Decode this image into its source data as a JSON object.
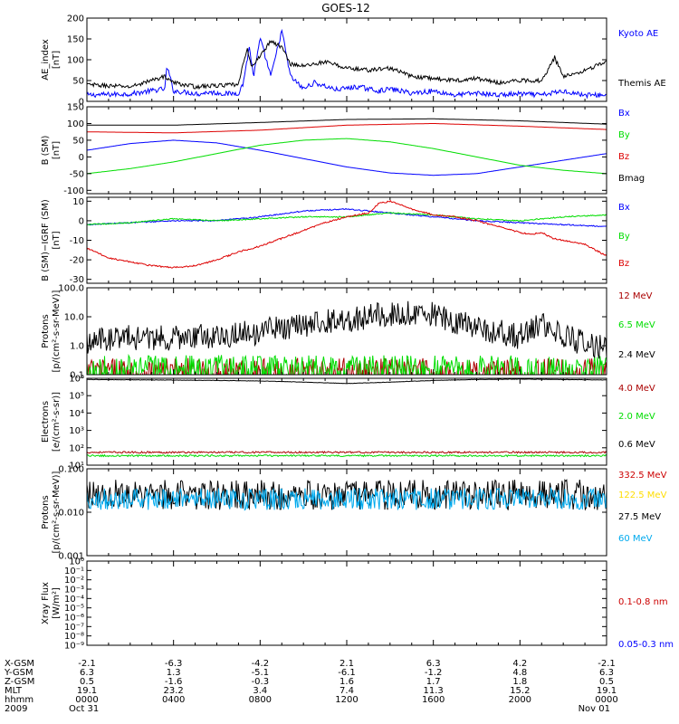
{
  "title": "GOES-12",
  "chart_data": [
    {
      "type": "line",
      "panel": "ae-index",
      "ylabel": [
        "AE_index",
        "[nT]"
      ],
      "yscale": "linear",
      "ylim": [
        0,
        200
      ],
      "yticks": [
        "0",
        "50",
        "100",
        "150",
        "200"
      ],
      "grid": false,
      "legend_position": "right",
      "series": [
        {
          "name": "Kyoto AE",
          "color": "#0000ff",
          "noise": 6,
          "x": [
            0,
            2,
            3.6,
            3.7,
            4.0,
            5.2,
            5.6,
            6.5,
            7.0,
            7.2,
            7.5,
            7.7,
            8.0,
            8.5,
            9.0,
            9.4,
            10.0,
            10.5,
            11.5,
            12.5,
            13.5,
            14,
            15,
            16,
            17,
            18,
            19,
            20,
            21,
            22,
            23,
            24
          ],
          "y": [
            15,
            18,
            30,
            85,
            25,
            18,
            22,
            18,
            20,
            40,
            130,
            60,
            150,
            60,
            170,
            60,
            30,
            45,
            28,
            35,
            25,
            30,
            20,
            25,
            15,
            20,
            15,
            18,
            15,
            25,
            15,
            15
          ]
        },
        {
          "name": "Themis AE",
          "color": "#000000",
          "noise": 5,
          "x": [
            0,
            2,
            3.6,
            4,
            5,
            6,
            7,
            7.4,
            7.6,
            8,
            8.5,
            9,
            9.4,
            10,
            11,
            12,
            13,
            14,
            15,
            16,
            17,
            18,
            19,
            20,
            21,
            21.6,
            22,
            23,
            24
          ],
          "y": [
            40,
            35,
            60,
            45,
            35,
            38,
            40,
            130,
            80,
            110,
            145,
            130,
            90,
            85,
            95,
            80,
            75,
            80,
            60,
            55,
            50,
            55,
            45,
            50,
            50,
            105,
            60,
            75,
            95
          ]
        }
      ]
    },
    {
      "type": "line",
      "panel": "b-sm",
      "ylabel": [
        "B (SM)",
        "[nT]"
      ],
      "yscale": "linear",
      "ylim": [
        -110,
        150
      ],
      "yticks": [
        "-100",
        "-50",
        "0",
        "50",
        "100",
        "150"
      ],
      "grid": false,
      "legend_position": "right",
      "series": [
        {
          "name": "Bx",
          "color": "#0000ff",
          "noise": 0,
          "x": [
            0,
            2,
            4,
            6,
            8,
            10,
            12,
            14,
            16,
            18,
            20,
            22,
            24
          ],
          "y": [
            20,
            40,
            50,
            42,
            20,
            -5,
            -30,
            -48,
            -55,
            -50,
            -30,
            -10,
            10
          ]
        },
        {
          "name": "By",
          "color": "#00dd00",
          "noise": 0,
          "x": [
            0,
            2,
            4,
            6,
            8,
            10,
            12,
            14,
            16,
            18,
            20,
            22,
            24
          ],
          "y": [
            -50,
            -35,
            -15,
            10,
            35,
            50,
            55,
            45,
            25,
            0,
            -25,
            -40,
            -50
          ]
        },
        {
          "name": "Bz",
          "color": "#dd0000",
          "noise": 0,
          "x": [
            0,
            4,
            8,
            12,
            16,
            20,
            24
          ],
          "y": [
            75,
            72,
            80,
            95,
            100,
            92,
            82
          ]
        },
        {
          "name": "Bmag",
          "color": "#000000",
          "noise": 0,
          "x": [
            0,
            4,
            8,
            12,
            16,
            20,
            24
          ],
          "y": [
            95,
            95,
            103,
            112,
            114,
            108,
            98
          ]
        }
      ]
    },
    {
      "type": "line",
      "panel": "b-minus-igrf",
      "ylabel": [
        "B (SM)−IGRF (SM)",
        "[nT]"
      ],
      "yscale": "linear",
      "ylim": [
        -32,
        12
      ],
      "yticks": [
        "-30",
        "-20",
        "-10",
        "0",
        "10"
      ],
      "grid": false,
      "legend_position": "right",
      "series": [
        {
          "name": "Bx",
          "color": "#0000ff",
          "noise": 0.3,
          "x": [
            0,
            2,
            4,
            6,
            8,
            10,
            12,
            13,
            14,
            16,
            18,
            20,
            22,
            24
          ],
          "y": [
            -2,
            -1,
            0,
            0,
            2,
            5,
            6,
            5,
            4,
            2,
            0,
            -1,
            -2,
            -3
          ]
        },
        {
          "name": "By",
          "color": "#00dd00",
          "noise": 0.3,
          "x": [
            0,
            2,
            4,
            6,
            8,
            10,
            12,
            14,
            16,
            18,
            20,
            22,
            24
          ],
          "y": [
            -2,
            -1,
            1,
            0,
            1,
            2,
            2,
            4,
            3,
            1,
            0,
            2,
            3
          ]
        },
        {
          "name": "Bz",
          "color": "#dd0000",
          "noise": 0.4,
          "x": [
            0,
            1,
            2,
            3,
            4,
            5,
            6,
            7,
            8,
            9,
            10,
            11,
            12,
            13,
            13.5,
            14,
            14.5,
            15,
            16,
            17,
            18,
            19,
            20,
            20.5,
            21,
            21.5,
            22,
            23,
            24
          ],
          "y": [
            -14,
            -19,
            -21,
            -23,
            -24,
            -23,
            -20,
            -16,
            -13,
            -9,
            -5,
            -1,
            2,
            4,
            9,
            10,
            8,
            6,
            3,
            2,
            0,
            -3,
            -6,
            -7,
            -6,
            -9,
            -10,
            -12,
            -18
          ]
        }
      ]
    },
    {
      "type": "line",
      "panel": "protons-low",
      "ylabel": [
        "Protons",
        "[p/(cm²-s-sr-MeV)]"
      ],
      "yscale": "log",
      "ylim": [
        0.1,
        100.0
      ],
      "yticks": [
        "0.1",
        "1.0",
        "10.0",
        "100.0"
      ],
      "grid": false,
      "legend_position": "right",
      "series": [
        {
          "name": "12 MeV",
          "color": "#aa0000",
          "noise": 0.5,
          "x": [
            0,
            24
          ],
          "y": [
            0.12,
            0.12
          ]
        },
        {
          "name": "6.5 MeV",
          "color": "#00dd00",
          "noise": 0.5,
          "x": [
            0,
            24
          ],
          "y": [
            0.15,
            0.15
          ]
        },
        {
          "name": "2.4 MeV",
          "color": "#000000",
          "noise": 0.45,
          "x": [
            0,
            2,
            4,
            6,
            8,
            10,
            12,
            13,
            14,
            15,
            16,
            17,
            18,
            19,
            20,
            21,
            22,
            23,
            24
          ],
          "y": [
            1.5,
            2,
            1.8,
            2.2,
            3,
            5,
            8,
            10,
            12,
            15,
            12,
            7,
            4,
            3,
            2,
            5,
            2,
            1.2,
            0.7
          ]
        }
      ]
    },
    {
      "type": "line",
      "panel": "electrons",
      "ylabel": [
        "Electrons",
        "[e/(cm²-s-sr)]"
      ],
      "yscale": "log",
      "ylim": [
        10,
        1000000
      ],
      "yticks": [
        "10¹",
        "10²",
        "10³",
        "10⁴",
        "10⁵",
        "10⁶"
      ],
      "grid": false,
      "legend_position": "right",
      "series": [
        {
          "name": "4.0 MeV",
          "color": "#aa0000",
          "noise": 0.05,
          "x": [
            0,
            24
          ],
          "y": [
            55,
            55
          ]
        },
        {
          "name": "2.0 MeV",
          "color": "#00dd00",
          "noise": 0.05,
          "x": [
            0,
            24
          ],
          "y": [
            35,
            35
          ]
        },
        {
          "name": "0.6 MeV",
          "color": "#000000",
          "noise": 0.01,
          "x": [
            0,
            3,
            6,
            8,
            10,
            12,
            14,
            16,
            18,
            20,
            22,
            24
          ],
          "y": [
            850000,
            800000,
            750000,
            700000,
            600000,
            500000,
            600000,
            750000,
            850000,
            900000,
            850000,
            800000
          ]
        }
      ]
    },
    {
      "type": "line",
      "panel": "protons-high",
      "ylabel": [
        "Protons",
        "[p/(cm²-s-sr-MeV)]"
      ],
      "yscale": "log",
      "ylim": [
        0.001,
        0.1
      ],
      "yticks": [
        "0.001",
        "0.010",
        "0.100"
      ],
      "grid": false,
      "legend_position": "right",
      "series": [
        {
          "name": "332.5 MeV",
          "color": "#cc0000",
          "noise": 0,
          "x": [],
          "y": []
        },
        {
          "name": "122.5 MeV",
          "color": "#ffdd00",
          "noise": 0,
          "x": [],
          "y": []
        },
        {
          "name": "27.5 MeV",
          "color": "#000000",
          "noise": 0.35,
          "x": [
            0,
            24
          ],
          "y": [
            0.025,
            0.025
          ]
        },
        {
          "name": "60 MeV",
          "color": "#00aaee",
          "noise": 0.25,
          "x": [
            0,
            24
          ],
          "y": [
            0.02,
            0.02
          ]
        }
      ]
    },
    {
      "type": "line",
      "panel": "xray-flux",
      "ylabel": [
        "Xray Flux",
        "[W/m²]"
      ],
      "yscale": "log",
      "ylim": [
        1e-09,
        1
      ],
      "yticks": [
        "10⁻⁹",
        "10⁻⁸",
        "10⁻⁷",
        "10⁻⁶",
        "10⁻⁵",
        "10⁻⁴",
        "10⁻³",
        "10⁻²",
        "10⁻¹",
        "10⁰"
      ],
      "grid": false,
      "legend_position": "right",
      "series": [
        {
          "name": "0.1-0.8 nm",
          "color": "#cc0000",
          "noise": 0,
          "x": [],
          "y": []
        },
        {
          "name": "0.05-0.3 nm",
          "color": "#0000ff",
          "noise": 0,
          "x": [],
          "y": []
        }
      ]
    }
  ],
  "x_axis": {
    "xlim": [
      0,
      24
    ],
    "row_labels": [
      "X-GSM",
      "Y-GSM",
      "Z-GSM",
      "MLT",
      "hhmm",
      "2009"
    ],
    "columns": [
      [
        "-2.1",
        "6.3",
        "0.5",
        "19.1",
        "0000",
        "Oct 31"
      ],
      [
        "-6.3",
        "1.3",
        "-1.6",
        "23.2",
        "0400",
        ""
      ],
      [
        "-4.2",
        "-5.1",
        "-0.3",
        "3.4",
        "0800",
        ""
      ],
      [
        "2.1",
        "-6.1",
        "1.6",
        "7.4",
        "1200",
        ""
      ],
      [
        "6.3",
        "-1.2",
        "1.7",
        "11.3",
        "1600",
        ""
      ],
      [
        "4.2",
        "4.8",
        "1.8",
        "15.2",
        "2000",
        ""
      ],
      [
        "-2.1",
        "6.3",
        "0.5",
        "19.1",
        "0000",
        "Nov 01"
      ]
    ]
  }
}
